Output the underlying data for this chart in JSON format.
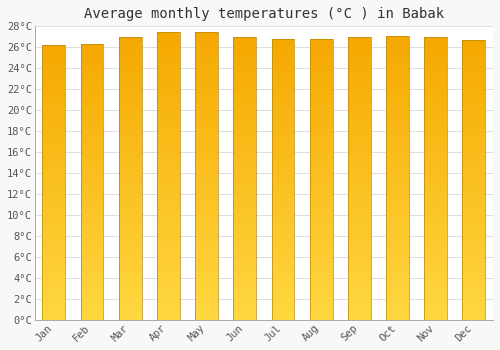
{
  "title": "Average monthly temperatures (°C ) in Babak",
  "months": [
    "Jan",
    "Feb",
    "Mar",
    "Apr",
    "May",
    "Jun",
    "Jul",
    "Aug",
    "Sep",
    "Oct",
    "Nov",
    "Dec"
  ],
  "temperatures": [
    26.2,
    26.3,
    27.0,
    27.5,
    27.5,
    27.0,
    26.8,
    26.8,
    27.0,
    27.1,
    27.0,
    26.7
  ],
  "bar_color_bottom": "#FFD740",
  "bar_color_top": "#F5A800",
  "bar_edge_color": "#B8860B",
  "background_color": "#F8F8F8",
  "plot_bg_color": "#FFFFFF",
  "grid_color": "#DDDDDD",
  "ylim": [
    0,
    28
  ],
  "ytick_step": 2,
  "title_fontsize": 10,
  "tick_fontsize": 7.5,
  "font_family": "monospace",
  "bar_width": 0.6,
  "n_grad": 60
}
